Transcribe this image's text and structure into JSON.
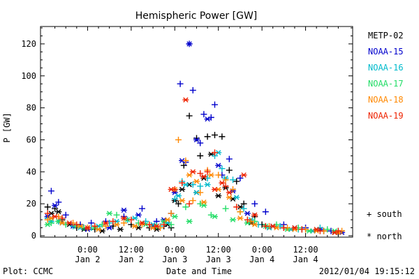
{
  "chart_data": {
    "type": "scatter",
    "title": "Hemispheric Power [GW]",
    "xlabel": "Date and Time",
    "ylabel": "P [GW]",
    "x_units": "hours since 2012-01-01 12:00 UT",
    "xlim": [
      0,
      84
    ],
    "ylim": [
      0,
      130
    ],
    "yticks": [
      0,
      20,
      40,
      60,
      80,
      100,
      120
    ],
    "xticks": [
      {
        "x": 12,
        "time": "0:00",
        "date": "Jan 2"
      },
      {
        "x": 24,
        "time": "12:00",
        "date": "Jan 2"
      },
      {
        "x": 36,
        "time": "0:00",
        "date": "Jan 3"
      },
      {
        "x": 48,
        "time": "12:00",
        "date": "Jan 3"
      },
      {
        "x": 60,
        "time": "0:00",
        "date": "Jan 4"
      },
      {
        "x": 72,
        "time": "12:00",
        "date": "Jan 4"
      }
    ],
    "marker_legend": [
      {
        "symbol": "+",
        "label": "south"
      },
      {
        "symbol": "*",
        "label": "north"
      }
    ],
    "series": [
      {
        "name": "METP-02",
        "color": "#000000",
        "south": [
          [
            1,
            18
          ],
          [
            3,
            17
          ],
          [
            5,
            10
          ],
          [
            9,
            5
          ],
          [
            14,
            4
          ],
          [
            19,
            6
          ],
          [
            24,
            7
          ],
          [
            29,
            5
          ],
          [
            33,
            6
          ],
          [
            35,
            5
          ],
          [
            37,
            20
          ],
          [
            38.5,
            44
          ],
          [
            40,
            75
          ],
          [
            42,
            61
          ],
          [
            43,
            50
          ],
          [
            45,
            62
          ],
          [
            47,
            63
          ],
          [
            49,
            62
          ],
          [
            51,
            41
          ],
          [
            53,
            34
          ],
          [
            55,
            20
          ],
          [
            58,
            12
          ],
          [
            60,
            7
          ],
          [
            66,
            5
          ],
          [
            71,
            4
          ],
          [
            77,
            3
          ],
          [
            81,
            2
          ]
        ],
        "north": [
          [
            2,
            14
          ],
          [
            4,
            15
          ],
          [
            7,
            7
          ],
          [
            11,
            4
          ],
          [
            16,
            3
          ],
          [
            21,
            4
          ],
          [
            26,
            5
          ],
          [
            31,
            4
          ],
          [
            34,
            7
          ],
          [
            36,
            22
          ],
          [
            38,
            29
          ],
          [
            40,
            32
          ],
          [
            42,
            27
          ],
          [
            44,
            36
          ],
          [
            46,
            51
          ],
          [
            48,
            25
          ],
          [
            50,
            30
          ],
          [
            52,
            23
          ],
          [
            54,
            18
          ],
          [
            57,
            8
          ],
          [
            62,
            5
          ],
          [
            68,
            4
          ],
          [
            74,
            3
          ],
          [
            80,
            2
          ]
        ]
      },
      {
        "name": "NOAA-15",
        "color": "#0000cc",
        "south": [
          [
            2,
            28
          ],
          [
            4,
            21
          ],
          [
            6,
            13
          ],
          [
            10,
            7
          ],
          [
            13,
            8
          ],
          [
            17,
            9
          ],
          [
            22,
            12
          ],
          [
            27,
            17
          ],
          [
            31,
            9
          ],
          [
            35,
            14
          ],
          [
            37.5,
            95
          ],
          [
            39,
            46
          ],
          [
            40,
            120
          ],
          [
            41,
            91
          ],
          [
            43,
            58
          ],
          [
            44,
            76
          ],
          [
            46,
            74
          ],
          [
            47,
            82
          ],
          [
            49,
            38
          ],
          [
            51,
            48
          ],
          [
            54,
            36
          ],
          [
            58,
            20
          ],
          [
            61,
            15
          ],
          [
            66,
            7
          ],
          [
            72,
            5
          ],
          [
            79,
            3
          ]
        ],
        "north": [
          [
            1,
            12
          ],
          [
            3,
            19
          ],
          [
            5,
            8
          ],
          [
            8,
            6
          ],
          [
            12,
            4
          ],
          [
            18,
            5
          ],
          [
            22,
            16
          ],
          [
            26,
            13
          ],
          [
            30,
            6
          ],
          [
            33,
            10
          ],
          [
            36,
            27
          ],
          [
            38,
            47
          ],
          [
            40,
            120
          ],
          [
            42,
            60
          ],
          [
            45,
            73
          ],
          [
            48,
            44
          ],
          [
            52,
            28
          ],
          [
            56,
            14
          ],
          [
            63,
            6
          ],
          [
            69,
            5
          ],
          [
            76,
            4
          ],
          [
            82,
            2
          ]
        ]
      },
      {
        "name": "NOAA-16",
        "color": "#00bbcc",
        "south": [
          [
            1,
            11
          ],
          [
            4,
            9
          ],
          [
            8,
            6
          ],
          [
            13,
            5
          ],
          [
            18,
            8
          ],
          [
            23,
            10
          ],
          [
            28,
            9
          ],
          [
            32,
            6
          ],
          [
            36,
            23
          ],
          [
            38,
            34
          ],
          [
            41,
            32
          ],
          [
            43,
            31
          ],
          [
            45,
            36
          ],
          [
            47,
            50
          ],
          [
            49,
            42
          ],
          [
            52,
            35
          ],
          [
            55,
            17
          ],
          [
            59,
            7
          ],
          [
            65,
            6
          ],
          [
            70,
            4
          ],
          [
            76,
            5
          ],
          [
            81,
            3
          ]
        ],
        "north": [
          [
            2,
            9
          ],
          [
            5,
            8
          ],
          [
            10,
            5
          ],
          [
            15,
            6
          ],
          [
            20,
            9
          ],
          [
            25,
            11
          ],
          [
            30,
            7
          ],
          [
            34,
            8
          ],
          [
            37,
            25
          ],
          [
            39,
            32
          ],
          [
            42,
            27
          ],
          [
            45,
            32
          ],
          [
            48,
            52
          ],
          [
            50,
            36
          ],
          [
            53,
            24
          ],
          [
            57,
            10
          ],
          [
            62,
            5
          ],
          [
            68,
            4
          ],
          [
            74,
            3
          ]
        ]
      },
      {
        "name": "NOAA-17",
        "color": "#22dd66",
        "south": [
          [
            2,
            8
          ],
          [
            6,
            7
          ],
          [
            11,
            5
          ],
          [
            16,
            7
          ],
          [
            20,
            13
          ],
          [
            26,
            8
          ],
          [
            31,
            6
          ],
          [
            35,
            7
          ],
          [
            39,
            18
          ],
          [
            43,
            20
          ],
          [
            46,
            13
          ],
          [
            50,
            17
          ],
          [
            54,
            15
          ],
          [
            58,
            9
          ],
          [
            64,
            7
          ],
          [
            70,
            5
          ],
          [
            78,
            4
          ]
        ],
        "north": [
          [
            1,
            7
          ],
          [
            4,
            9
          ],
          [
            9,
            6
          ],
          [
            14,
            5
          ],
          [
            18,
            14
          ],
          [
            23,
            10
          ],
          [
            28,
            7
          ],
          [
            33,
            9
          ],
          [
            36,
            12
          ],
          [
            40,
            9
          ],
          [
            44,
            19
          ],
          [
            47,
            12
          ],
          [
            52,
            10
          ],
          [
            56,
            8
          ],
          [
            61,
            6
          ],
          [
            67,
            4
          ],
          [
            73,
            3
          ],
          [
            80,
            3
          ]
        ]
      },
      {
        "name": "NOAA-18",
        "color": "#ff8800",
        "south": [
          [
            1,
            10
          ],
          [
            4,
            12
          ],
          [
            8,
            8
          ],
          [
            12,
            5
          ],
          [
            17,
            6
          ],
          [
            22,
            8
          ],
          [
            27,
            7
          ],
          [
            32,
            5
          ],
          [
            35,
            14
          ],
          [
            37,
            60
          ],
          [
            39,
            47
          ],
          [
            41,
            22
          ],
          [
            43,
            27
          ],
          [
            45,
            41
          ],
          [
            48,
            38
          ],
          [
            50,
            35
          ],
          [
            52,
            29
          ],
          [
            54,
            15
          ],
          [
            57,
            9
          ],
          [
            62,
            6
          ],
          [
            67,
            5
          ],
          [
            72,
            4
          ],
          [
            77,
            3
          ],
          [
            82,
            3
          ]
        ],
        "north": [
          [
            2,
            11
          ],
          [
            5,
            8
          ],
          [
            10,
            6
          ],
          [
            15,
            4
          ],
          [
            20,
            7
          ],
          [
            25,
            6
          ],
          [
            30,
            5
          ],
          [
            34,
            10
          ],
          [
            36,
            29
          ],
          [
            38,
            22
          ],
          [
            40,
            38
          ],
          [
            42,
            34
          ],
          [
            44,
            21
          ],
          [
            46,
            38
          ],
          [
            48,
            29
          ],
          [
            51,
            24
          ],
          [
            54,
            11
          ],
          [
            58,
            7
          ],
          [
            64,
            5
          ],
          [
            69,
            4
          ],
          [
            75,
            3
          ],
          [
            81,
            2
          ]
        ]
      },
      {
        "name": "NOAA-19",
        "color": "#ee2200",
        "south": [
          [
            1,
            14
          ],
          [
            5,
            11
          ],
          [
            9,
            7
          ],
          [
            14,
            6
          ],
          [
            19,
            9
          ],
          [
            24,
            10
          ],
          [
            29,
            7
          ],
          [
            33,
            7
          ],
          [
            36,
            29
          ],
          [
            38,
            33
          ],
          [
            40,
            20
          ],
          [
            43,
            39
          ],
          [
            45,
            40
          ],
          [
            47,
            52
          ],
          [
            50,
            31
          ],
          [
            53,
            18
          ],
          [
            56,
            10
          ],
          [
            61,
            6
          ],
          [
            66,
            5
          ],
          [
            71,
            4
          ],
          [
            76,
            3
          ],
          [
            81,
            3
          ]
        ],
        "north": [
          [
            3,
            12
          ],
          [
            7,
            8
          ],
          [
            12,
            5
          ],
          [
            17,
            8
          ],
          [
            22,
            11
          ],
          [
            27,
            8
          ],
          [
            31,
            6
          ],
          [
            35,
            29
          ],
          [
            39,
            85
          ],
          [
            41,
            40
          ],
          [
            44,
            37
          ],
          [
            47,
            29
          ],
          [
            49,
            33
          ],
          [
            51,
            27
          ],
          [
            55,
            38
          ],
          [
            58,
            13
          ],
          [
            63,
            6
          ],
          [
            69,
            5
          ],
          [
            75,
            4
          ],
          [
            80,
            2
          ]
        ]
      }
    ]
  },
  "footer": {
    "left": "Plot: CCMC",
    "center": "Date and Time",
    "right": "2012/01/04 19:15:12"
  }
}
